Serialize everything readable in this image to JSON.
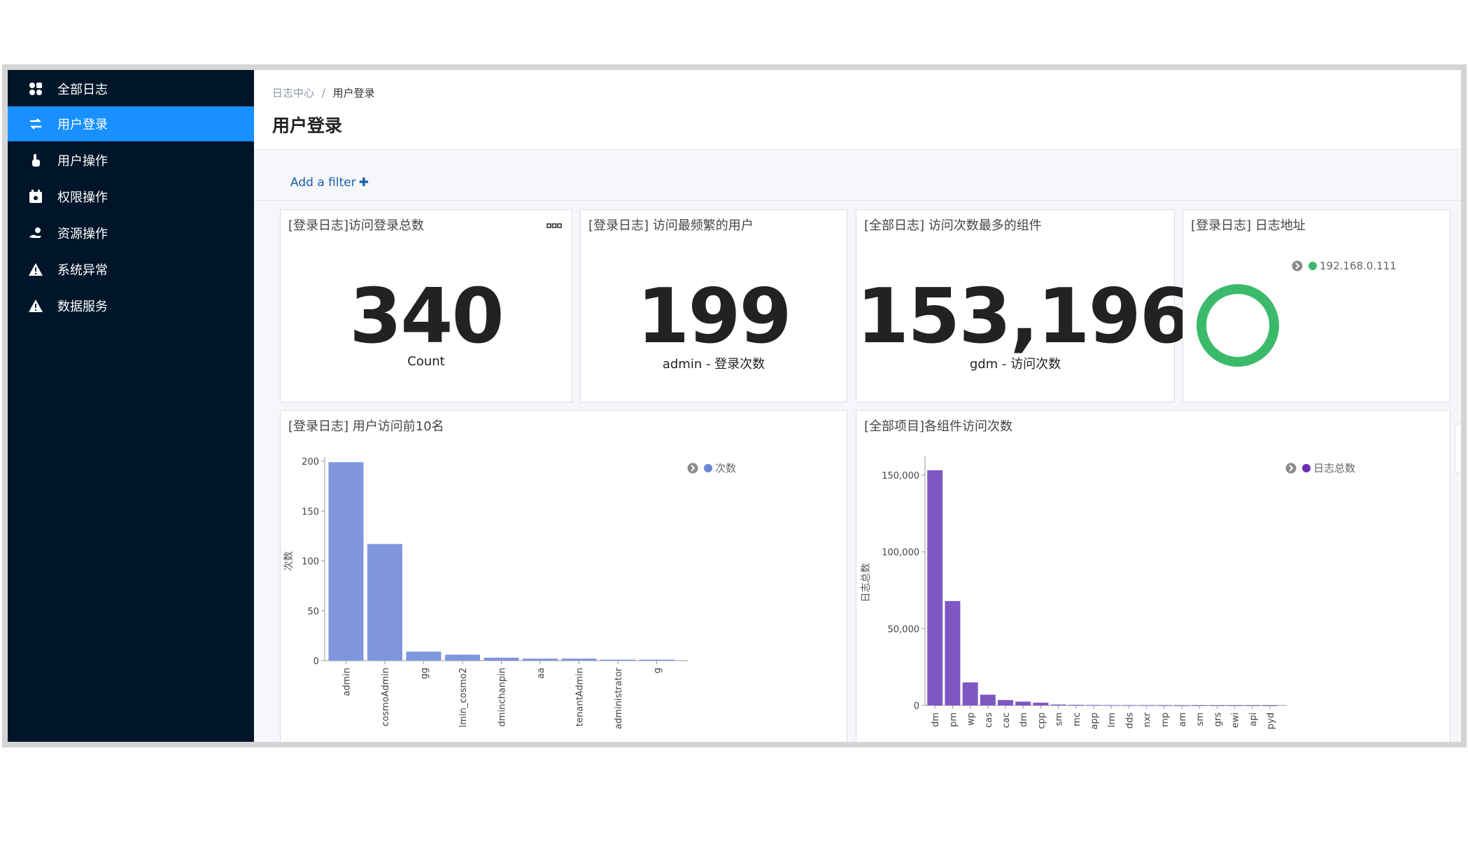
{
  "sidebar": {
    "items": [
      {
        "label": "全部日志",
        "icon": "grid-icon"
      },
      {
        "label": "用户登录",
        "icon": "swap-icon",
        "active": true
      },
      {
        "label": "用户操作",
        "icon": "pointer-hand-icon"
      },
      {
        "label": "权限操作",
        "icon": "calendar-lock-icon"
      },
      {
        "label": "资源操作",
        "icon": "hand-coin-icon"
      },
      {
        "label": "系统异常",
        "icon": "warning-icon"
      },
      {
        "label": "数据服务",
        "icon": "warning-icon"
      }
    ]
  },
  "header": {
    "breadcrumb": [
      "日志中心",
      "用户登录"
    ],
    "breadcrumb_separator": "/",
    "title": "用户登录"
  },
  "filter": {
    "add_label": "Add a filter",
    "add_icon": "plus-icon"
  },
  "panels": {
    "total_logins": {
      "title": "[登录日志]访问登录总数",
      "value": "340",
      "label": "Count",
      "menu_icon": "more-dots-icon"
    },
    "top_user": {
      "title": "[登录日志] 访问最频繁的用户",
      "value": "199",
      "label": "admin - 登录次数"
    },
    "top_component": {
      "title": "[全部日志] 访问次数最多的组件",
      "value": "153,196",
      "label": "gdm - 访问次数"
    },
    "log_address": {
      "title": "[登录日志] 日志地址",
      "legend": "192.168.0.111",
      "legend_color": "#3cba6b"
    },
    "user_top10": {
      "title": "[登录日志] 用户访问前10名",
      "legend": "次数",
      "legend_color": "#6f86d9"
    },
    "component_visits": {
      "title": "[全部项目]各组件访问次数",
      "legend": "日志总数",
      "legend_color": "#6b2fb5"
    }
  },
  "colors": {
    "sidebar_bg": "#001529",
    "active": "#1890ff",
    "bar1": "#7f96df",
    "bar2": "#7e57c2",
    "donut": "#3cba6b"
  },
  "chart_data": [
    {
      "type": "pie",
      "title": "[登录日志] 日志地址",
      "categories": [
        "192.168.0.111"
      ],
      "values": [
        340
      ],
      "donut": true
    },
    {
      "type": "bar",
      "title": "[登录日志] 用户访问前10名",
      "ylabel": "次数",
      "ylim": [
        0,
        200
      ],
      "yticks": [
        "0",
        "50",
        "100",
        "150",
        "200"
      ],
      "categories": [
        "admin",
        "cosmoAdmin",
        "gg",
        "lmin_cosmo2",
        "dminchanpin",
        "aa",
        "tenantAdmin",
        "administrator",
        "g"
      ],
      "values": [
        199,
        117,
        9,
        6,
        3,
        2,
        2,
        1,
        1
      ],
      "legend": "次数"
    },
    {
      "type": "bar",
      "title": "[全部项目]各组件访问次数",
      "ylabel": "日志总数",
      "ylim": [
        0,
        160000
      ],
      "yticks": [
        "0",
        "50,000",
        "100,000",
        "150,000"
      ],
      "categories": [
        "dm",
        "pm",
        "wp",
        "cas",
        "cac",
        "dm",
        "cpp",
        "sm",
        "mc",
        "app",
        "lrm",
        "dds",
        "nxr",
        "mp",
        "am",
        "sm",
        "grs",
        "ewi",
        "api",
        "pyd"
      ],
      "values": [
        153196,
        68000,
        15000,
        7000,
        3500,
        2500,
        1800,
        600,
        400,
        300,
        250,
        200,
        150,
        120,
        100,
        80,
        60,
        50,
        40,
        30
      ],
      "legend": "日志总数"
    }
  ]
}
